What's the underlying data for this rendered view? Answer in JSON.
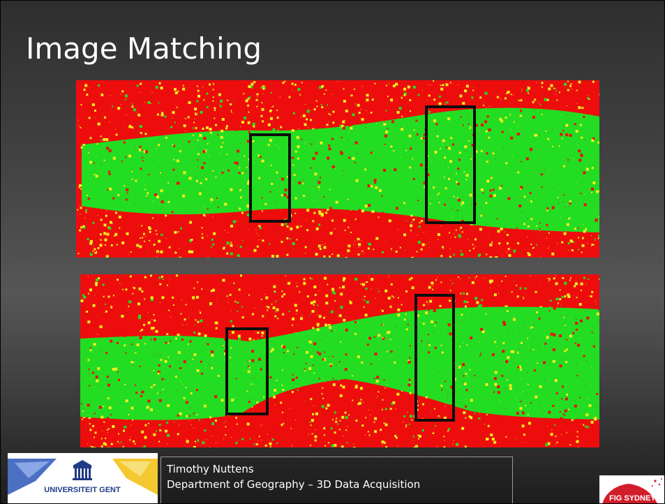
{
  "slide": {
    "title": "Image Matching",
    "footer": {
      "author": "Timothy Nuttens",
      "department": "Department of Geography – 3D Data Acquisition"
    },
    "logos": {
      "left_text": "UNIVERSITEIT GENT",
      "right_text": "FIG SYDNEY"
    }
  },
  "colors": {
    "match_good": "#22dd22",
    "match_medium": "#f2ef1a",
    "match_bad": "#ee0d0d",
    "highlight_box": "#0d0d0d"
  },
  "icons": {
    "left_logo": "ugent-logo-icon",
    "right_logo": "fig-logo-icon"
  }
}
